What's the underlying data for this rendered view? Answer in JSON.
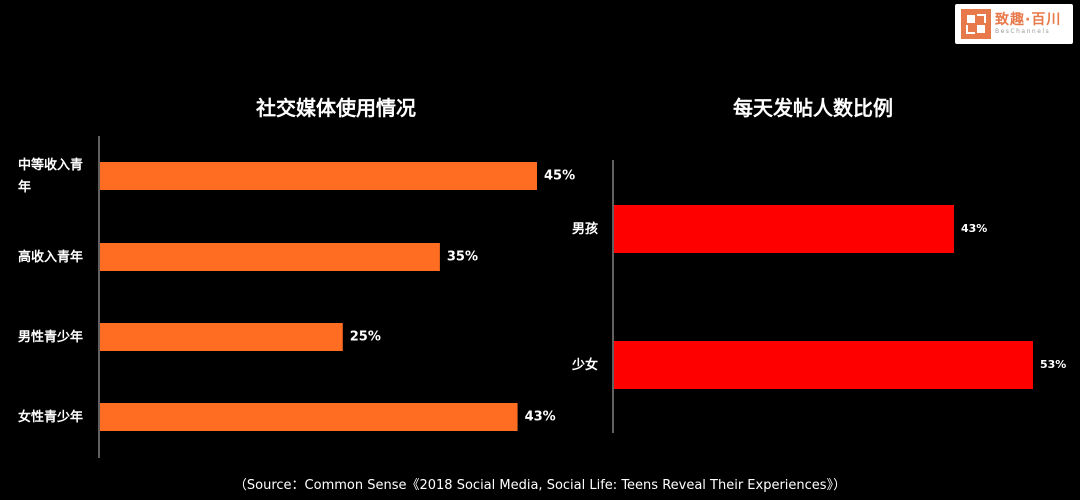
{
  "logo": {
    "name_cn": "致趣·百川",
    "name_en": "BesChannels"
  },
  "source": "（Source：Common Sense《2018 Social Media, Social Life: Teens Reveal Their Experiences》）",
  "colors": {
    "left_bar": "#ff6d22",
    "right_bar": "#ff0000",
    "background": "#000000",
    "axis": "#bfbfbf"
  },
  "chart_data": [
    {
      "type": "bar",
      "orientation": "horizontal",
      "title": "社交媒体使用情况",
      "categories": [
        "中等收入青年",
        "高收入青年",
        "男性青少年",
        "女性青少年"
      ],
      "values": [
        45,
        35,
        25,
        43
      ],
      "value_labels": [
        "45%",
        "35%",
        "25%",
        "43%"
      ],
      "unit": "%",
      "xlim": [
        0,
        45
      ],
      "grid": false,
      "legend": "none"
    },
    {
      "type": "bar",
      "orientation": "horizontal",
      "title": "每天发帖人数比例",
      "categories": [
        "男孩",
        "少女"
      ],
      "values": [
        43,
        53
      ],
      "value_labels": [
        "43%",
        "53%"
      ],
      "unit": "%",
      "xlim": [
        0,
        53
      ],
      "grid": false,
      "legend": "none"
    }
  ]
}
